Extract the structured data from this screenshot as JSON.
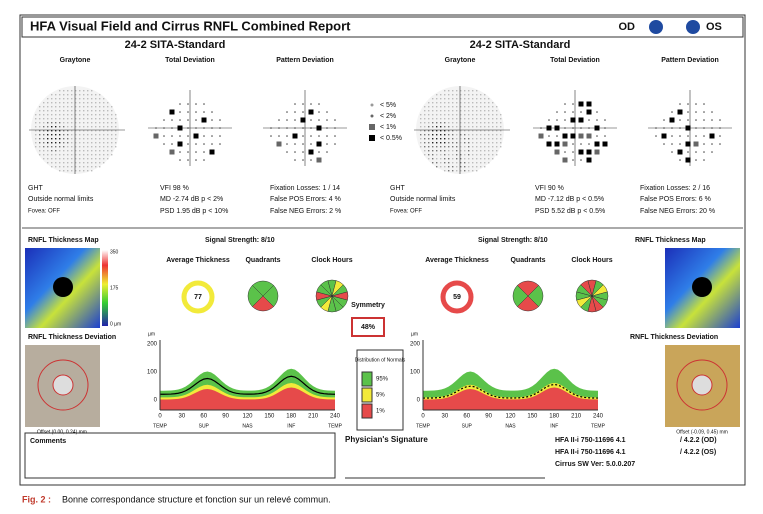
{
  "header": {
    "title": "HFA Visual Field and Cirrus RNFL Combined Report",
    "od": "OD",
    "os": "OS"
  },
  "visual_field": {
    "test": "24-2 SITA-Standard",
    "panels": [
      "Graytone",
      "Total Deviation",
      "Pattern Deviation"
    ],
    "legend": [
      "< 5%",
      "< 2%",
      "< 1%",
      "< 0.5%"
    ],
    "left": {
      "ght": "GHT",
      "ght_result": "Outside normal limits",
      "fovea": "Fovea: OFF",
      "vfi": "VFI  98 %",
      "md": "MD  -2.74 dB  p < 2%",
      "psd": "PSD  1.95 dB  p < 10%",
      "fixation": "Fixation Losses:     1 / 14",
      "false_pos": "False POS Errors:       4 %",
      "false_neg": "False NEG Errors:       2 %"
    },
    "right": {
      "ght": "GHT",
      "ght_result": "Outside normal limits",
      "fovea": "Fovea: OFF",
      "vfi": "VFI  90 %",
      "md": "MD  -7.12 dB  p < 0.5%",
      "psd": "PSD  5.52 dB  p < 0.5%",
      "fixation": "Fixation Losses:     2 / 16",
      "false_pos": "False POS Errors:       6 %",
      "false_neg": "False NEG Errors:      20 %"
    }
  },
  "rnfl": {
    "map": "RNFL Thickness Map",
    "deviation": "RNFL Thickness Deviation",
    "signal": "Signal Strength:   8/10",
    "average": "Average Thickness",
    "quadrants": "Quadrants",
    "clock": "Clock Hours",
    "scale": [
      "350",
      "175",
      "0 µm"
    ],
    "left_avg": "77",
    "right_avg": "59",
    "symmetry": "Symmetry",
    "symmetry_value": "48%",
    "left_offset": "Offset (0.00, 0.24) mm",
    "right_offset": "Offset (-0.09, 0.45) mm",
    "graph_unit": "µm",
    "graph_yticks": [
      "200",
      "100",
      "0"
    ],
    "graph_xticks": [
      "0",
      "30",
      "60",
      "90",
      "120",
      "150",
      "180",
      "210",
      "240"
    ],
    "graph_regions": [
      "TEMP",
      "SUP",
      "NAS",
      "INF",
      "TEMP"
    ],
    "distribution": "Distribution of Normals",
    "distribution_levels": [
      "95%",
      "5%",
      "1%"
    ]
  },
  "footer": {
    "comments": "Comments",
    "signature": "Physician's Signature",
    "lines": [
      "HFA II-i     750-11696 4.1",
      "HFA II-i     750-11696 4.1",
      "Cirrus SW Ver:     5.0.0.207"
    ],
    "versions": [
      "/ 4.2.2       (OD)",
      "/ 4.2.2       (OS)"
    ]
  },
  "caption": {
    "label": "Fig. 2 :",
    "text": "Bonne correspondance structure et fonction sur un relevé commun."
  }
}
